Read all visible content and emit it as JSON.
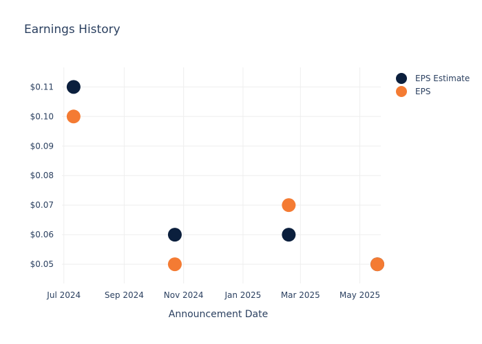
{
  "chart_data": {
    "type": "scatter",
    "title": "Earnings History",
    "xlabel": "Announcement Date",
    "ylabel": "",
    "x_ticks": [
      "2024-07-01",
      "2024-09-01",
      "2024-11-01",
      "2025-01-01",
      "2025-03-01",
      "2025-05-01"
    ],
    "x_tick_labels": [
      "Jul 2024",
      "Sep 2024",
      "Nov 2024",
      "Jan 2025",
      "Mar 2025",
      "May 2025"
    ],
    "xlim": [
      "2024-06-22",
      "2025-05-31"
    ],
    "y_ticks": [
      0.05,
      0.06,
      0.07,
      0.08,
      0.09,
      0.1,
      0.11
    ],
    "y_tick_labels": [
      "$0.05",
      "$0.06",
      "$0.07",
      "$0.08",
      "$0.09",
      "$0.10",
      "$0.11"
    ],
    "ylim": [
      0.0435,
      0.1166
    ],
    "grid": true,
    "legend_position": "top-right",
    "series": [
      {
        "name": "EPS Estimate",
        "color": "#0b1f3d",
        "points": [
          {
            "x": "2024-07-11",
            "y": 0.11
          },
          {
            "x": "2024-10-23",
            "y": 0.06
          },
          {
            "x": "2025-02-17",
            "y": 0.06
          },
          {
            "x": "2025-05-19",
            "y": 0.05
          }
        ]
      },
      {
        "name": "EPS",
        "color": "#f47b33",
        "points": [
          {
            "x": "2024-07-11",
            "y": 0.1
          },
          {
            "x": "2024-10-23",
            "y": 0.05
          },
          {
            "x": "2025-02-17",
            "y": 0.07
          },
          {
            "x": "2025-05-19",
            "y": 0.05
          }
        ]
      }
    ]
  }
}
